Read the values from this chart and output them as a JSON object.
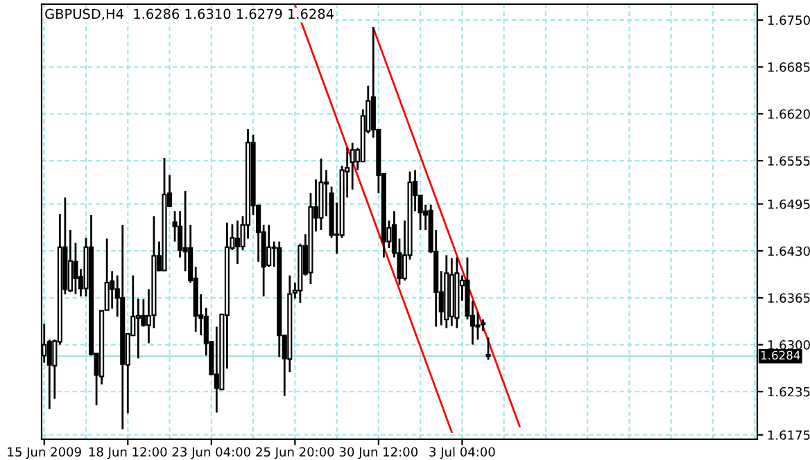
{
  "chart_data": {
    "type": "candlestick",
    "title": "GBPUSD,H4  1.6286 1.6310 1.6279 1.6284",
    "categories": [
      "15 Jun 2009",
      null,
      null,
      null,
      null,
      null,
      null,
      null,
      null,
      null,
      null,
      null,
      null,
      null,
      null,
      null,
      "18 Jun 12:00",
      null,
      null,
      null,
      null,
      null,
      null,
      null,
      null,
      null,
      null,
      null,
      null,
      null,
      null,
      null,
      "23 Jun 04:00",
      null,
      null,
      null,
      null,
      null,
      null,
      null,
      null,
      null,
      null,
      null,
      null,
      null,
      null,
      null,
      "25 Jun 20:00",
      null,
      null,
      null,
      null,
      null,
      null,
      null,
      null,
      null,
      null,
      null,
      null,
      null,
      null,
      null,
      "30 Jun 12:00",
      null,
      null,
      null,
      null,
      null,
      null,
      null,
      null,
      null,
      null,
      null,
      null,
      null,
      null,
      null,
      "3 Jul 04:00",
      null,
      null,
      null,
      null,
      null,
      null,
      null,
      null,
      null,
      null,
      null,
      null,
      null,
      null,
      null,
      null,
      null,
      null,
      null,
      null,
      null,
      null,
      null,
      null,
      null,
      null,
      null,
      null,
      null,
      null,
      null,
      null,
      null,
      null,
      null,
      null,
      null,
      null,
      null,
      null,
      null,
      null,
      null,
      null,
      null,
      null,
      null,
      null,
      null,
      null,
      null,
      null,
      null,
      null,
      null,
      null
    ],
    "ohlc": [
      [
        1.6285,
        1.6329,
        1.6275,
        1.63
      ],
      [
        1.6304,
        1.6307,
        1.6211,
        1.6272
      ],
      [
        1.6271,
        1.6307,
        1.6225,
        1.6305
      ],
      [
        1.6304,
        1.6481,
        1.63,
        1.6435
      ],
      [
        1.6435,
        1.6504,
        1.637,
        1.6377
      ],
      [
        1.6375,
        1.6459,
        1.6373,
        1.6416
      ],
      [
        1.6415,
        1.6441,
        1.637,
        1.6392
      ],
      [
        1.6394,
        1.6405,
        1.6367,
        1.6378
      ],
      [
        1.6378,
        1.6448,
        1.6367,
        1.6435
      ],
      [
        1.6435,
        1.648,
        1.6285,
        1.6287
      ],
      [
        1.6288,
        1.6288,
        1.6216,
        1.6258
      ],
      [
        1.6256,
        1.6348,
        1.6245,
        1.6347
      ],
      [
        1.6348,
        1.6447,
        1.6348,
        1.6386
      ],
      [
        1.6388,
        1.6402,
        1.635,
        1.6377
      ],
      [
        1.6377,
        1.6396,
        1.6339,
        1.6365
      ],
      [
        1.6365,
        1.6466,
        1.6183,
        1.6273
      ],
      [
        1.6272,
        1.6316,
        1.6205,
        1.6315
      ],
      [
        1.6313,
        1.6396,
        1.6312,
        1.6339
      ],
      [
        1.6337,
        1.6364,
        1.6281,
        1.634
      ],
      [
        1.634,
        1.6363,
        1.6325,
        1.6327
      ],
      [
        1.6327,
        1.6377,
        1.6302,
        1.634
      ],
      [
        1.6341,
        1.6478,
        1.6323,
        1.6423
      ],
      [
        1.6423,
        1.6443,
        1.6402,
        1.6403
      ],
      [
        1.6403,
        1.6559,
        1.6402,
        1.6508
      ],
      [
        1.651,
        1.6535,
        1.6491,
        1.6492
      ],
      [
        1.647,
        1.6485,
        1.6443,
        1.6464
      ],
      [
        1.6464,
        1.6485,
        1.6421,
        1.6431
      ],
      [
        1.6434,
        1.6513,
        1.6402,
        1.6429
      ],
      [
        1.6434,
        1.6466,
        1.6386,
        1.6389
      ],
      [
        1.6392,
        1.6408,
        1.6318,
        1.634
      ],
      [
        1.6341,
        1.637,
        1.6313,
        1.6337
      ],
      [
        1.6339,
        1.6351,
        1.6285,
        1.6302
      ],
      [
        1.6304,
        1.6304,
        1.6259,
        1.6259
      ],
      [
        1.6259,
        1.6325,
        1.6206,
        1.624
      ],
      [
        1.6238,
        1.6342,
        1.6237,
        1.6342
      ],
      [
        1.6341,
        1.6469,
        1.6267,
        1.6435
      ],
      [
        1.6434,
        1.6467,
        1.6431,
        1.6448
      ],
      [
        1.6447,
        1.6472,
        1.6412,
        1.6436
      ],
      [
        1.6436,
        1.6478,
        1.6431,
        1.6466
      ],
      [
        1.6466,
        1.6599,
        1.6447,
        1.658
      ],
      [
        1.658,
        1.6591,
        1.648,
        1.6493
      ],
      [
        1.6493,
        1.6493,
        1.6415,
        1.6456
      ],
      [
        1.6456,
        1.6466,
        1.6367,
        1.6408
      ],
      [
        1.641,
        1.6466,
        1.6408,
        1.6435
      ],
      [
        1.6435,
        1.6443,
        1.6408,
        1.6434
      ],
      [
        1.6434,
        1.6443,
        1.6283,
        1.6313
      ],
      [
        1.6313,
        1.6314,
        1.6229,
        1.6281
      ],
      [
        1.628,
        1.6396,
        1.6262,
        1.637
      ],
      [
        1.6372,
        1.6386,
        1.6364,
        1.6375
      ],
      [
        1.6375,
        1.644,
        1.6358,
        1.6437
      ],
      [
        1.6437,
        1.6453,
        1.6396,
        1.6398
      ],
      [
        1.64,
        1.651,
        1.6384,
        1.6491
      ],
      [
        1.6491,
        1.6529,
        1.6457,
        1.6476
      ],
      [
        1.6476,
        1.6558,
        1.6459,
        1.6525
      ],
      [
        1.6525,
        1.6542,
        1.6478,
        1.6523
      ],
      [
        1.651,
        1.6519,
        1.6448,
        1.6452
      ],
      [
        1.6452,
        1.6497,
        1.6426,
        1.6453
      ],
      [
        1.6452,
        1.6548,
        1.6448,
        1.6542
      ],
      [
        1.654,
        1.6573,
        1.6504,
        1.6545
      ],
      [
        1.6553,
        1.658,
        1.6515,
        1.657
      ],
      [
        1.6554,
        1.6573,
        1.6542,
        1.657
      ],
      [
        1.6554,
        1.6626,
        1.6553,
        1.6617
      ],
      [
        1.6596,
        1.6659,
        1.6593,
        1.6638
      ],
      [
        1.6643,
        1.674,
        1.6587,
        1.6598
      ],
      [
        1.6598,
        1.6598,
        1.651,
        1.6535
      ],
      [
        1.6537,
        1.6537,
        1.6421,
        1.6443
      ],
      [
        1.6443,
        1.6472,
        1.6434,
        1.6462
      ],
      [
        1.6466,
        1.6485,
        1.6421,
        1.6427
      ],
      [
        1.6427,
        1.6447,
        1.6383,
        1.6392
      ],
      [
        1.6392,
        1.6472,
        1.6389,
        1.6424
      ],
      [
        1.6424,
        1.654,
        1.6418,
        1.6525
      ],
      [
        1.6526,
        1.6542,
        1.6485,
        1.6507
      ],
      [
        1.6507,
        1.6507,
        1.6459,
        1.6483
      ],
      [
        1.6485,
        1.6494,
        1.6459,
        1.648
      ],
      [
        1.6486,
        1.6494,
        1.6427,
        1.6429
      ],
      [
        1.6429,
        1.6459,
        1.6325,
        1.6373
      ],
      [
        1.6373,
        1.6402,
        1.6327,
        1.6346
      ],
      [
        1.6335,
        1.6424,
        1.6323,
        1.6399
      ],
      [
        1.6339,
        1.642,
        1.6326,
        1.6397
      ],
      [
        1.6337,
        1.6421,
        1.6323,
        1.6399
      ],
      [
        1.6382,
        1.6396,
        1.6361,
        1.6389
      ],
      [
        1.6389,
        1.6421,
        1.6335,
        1.634
      ],
      [
        1.634,
        1.6361,
        1.63,
        1.6326
      ],
      [
        1.6327,
        1.6345,
        1.6307,
        1.6325
      ],
      [
        1.6328,
        1.6335,
        1.6319,
        1.633
      ],
      [
        1.6286,
        1.631,
        1.6279,
        1.6284
      ],
      null,
      null,
      null,
      null,
      null,
      null,
      null,
      null,
      null,
      null,
      null,
      null,
      null,
      null,
      null,
      null,
      null,
      null,
      null,
      null,
      null,
      null,
      null,
      null,
      null,
      null,
      null,
      null,
      null,
      null,
      null,
      null,
      null,
      null,
      null,
      null,
      null,
      null,
      null,
      null,
      null,
      null,
      null,
      null,
      null,
      null,
      null,
      null,
      null,
      null,
      null
    ],
    "series": [
      {
        "type": "line",
        "color": "#ff0000",
        "values": [
          null,
          null,
          null,
          null,
          null,
          null,
          null,
          null,
          null,
          null,
          null,
          null,
          null,
          null,
          null,
          null,
          null,
          null,
          null,
          null,
          null,
          null,
          null,
          null,
          null,
          null,
          null,
          null,
          null,
          null,
          null,
          null,
          null,
          null,
          null,
          null,
          null,
          null,
          null,
          null,
          null,
          null,
          null,
          null,
          null,
          null,
          null,
          null,
          1.6771,
          null,
          null,
          null,
          null,
          null,
          null,
          null,
          null,
          null,
          null,
          null,
          null,
          null,
          null,
          null,
          null,
          null,
          null,
          null,
          null,
          null,
          null,
          null,
          null,
          null,
          null,
          null,
          null,
          null,
          1.6179,
          null,
          null,
          null,
          null,
          null,
          null,
          null,
          null,
          null,
          null,
          null,
          null,
          null,
          null,
          null,
          null,
          null,
          null,
          null,
          null,
          null,
          null,
          null,
          null,
          null,
          null,
          null,
          null,
          null,
          null,
          null,
          null,
          null,
          null,
          null,
          null,
          null,
          null,
          null,
          null,
          null,
          null,
          null,
          null,
          null,
          null,
          null,
          null,
          null,
          null,
          null,
          null,
          null,
          null,
          null,
          null,
          null,
          null
        ]
      },
      {
        "type": "line",
        "color": "#ff0000",
        "values": [
          null,
          null,
          null,
          null,
          null,
          null,
          null,
          null,
          null,
          null,
          null,
          null,
          null,
          null,
          null,
          null,
          null,
          null,
          null,
          null,
          null,
          null,
          null,
          null,
          null,
          null,
          null,
          null,
          null,
          null,
          null,
          null,
          null,
          null,
          null,
          null,
          null,
          null,
          null,
          null,
          null,
          null,
          null,
          null,
          null,
          null,
          null,
          null,
          null,
          null,
          null,
          null,
          null,
          null,
          null,
          null,
          null,
          null,
          null,
          null,
          null,
          null,
          null,
          1.6739,
          null,
          null,
          null,
          null,
          null,
          null,
          null,
          null,
          null,
          null,
          null,
          null,
          null,
          null,
          null,
          null,
          null,
          null,
          null,
          null,
          null,
          null,
          null,
          null,
          null,
          null,
          null,
          1.6187,
          null,
          null,
          null,
          null,
          null,
          null,
          null,
          null,
          null,
          null,
          null,
          null,
          null,
          null,
          null,
          null,
          null,
          null,
          null,
          null,
          null,
          null,
          null,
          null,
          null,
          null,
          null,
          null,
          null,
          null,
          null,
          null,
          null,
          null,
          null,
          null,
          null,
          null,
          null,
          null,
          null,
          null,
          null,
          null,
          null
        ]
      }
    ],
    "ylim": [
      1.6169,
      1.6772
    ],
    "yticks": [
      1.6175,
      1.6235,
      {
        "value": 1.63,
        "label": "1.6300"
      },
      1.6365,
      {
        "value": 1.643,
        "label": "1.6430"
      },
      1.6495,
      1.6555,
      {
        "value": 1.662,
        "label": "1.6620"
      },
      1.6685,
      {
        "value": 1.675,
        "label": "1.6750"
      }
    ],
    "ref_lines": [
      {
        "axis": "y",
        "value": 1.6284,
        "label": "1.6284",
        "color": "#a8e0e0"
      }
    ],
    "grid": true
  }
}
